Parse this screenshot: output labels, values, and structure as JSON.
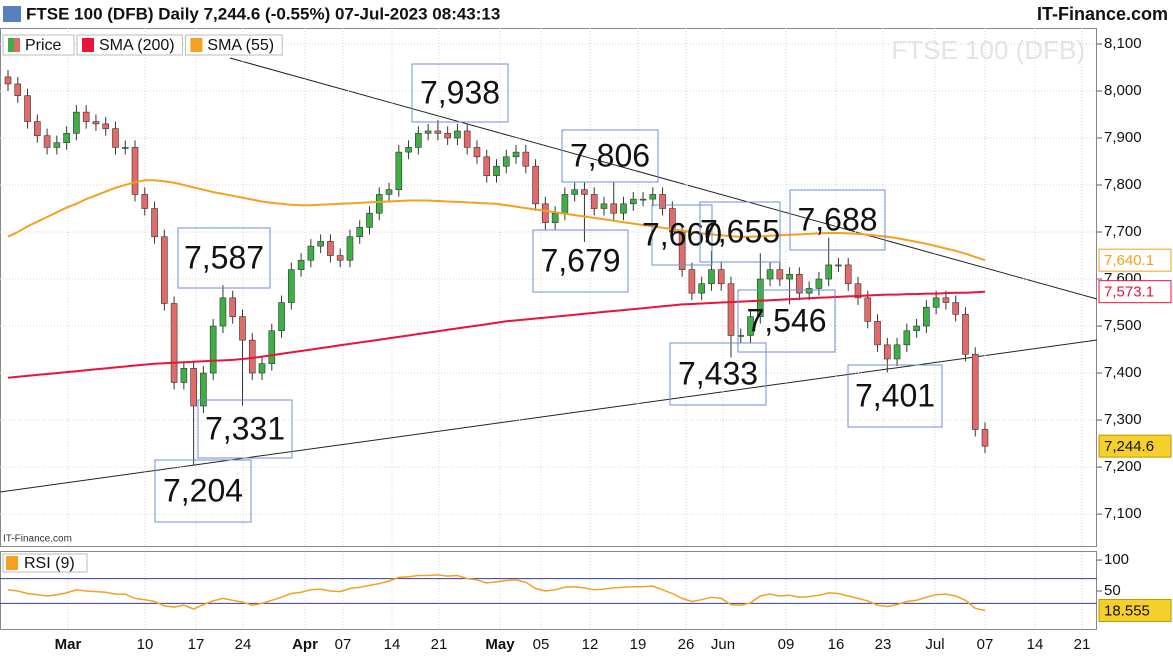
{
  "chart_data": [
    {
      "type": "candlestick",
      "title": "FTSE 100 (DFB) Daily 7,244.6 (-0.55%) 07-Jul-2023 08:43:13",
      "source": "IT-Finance.com",
      "watermark": "FTSE 100 (DFB)",
      "credit": "IT-Finance.com",
      "ylim": [
        7030,
        8134
      ],
      "yticks": [
        {
          "value": 7100,
          "label": "7,100"
        },
        {
          "value": 7200,
          "label": "7,200"
        },
        {
          "value": 7300,
          "label": "7,300"
        },
        {
          "value": 7400,
          "label": "7,400"
        },
        {
          "value": 7500,
          "label": "7,500"
        },
        {
          "value": 7600,
          "label": "7,600"
        },
        {
          "value": 7700,
          "label": "7,700"
        },
        {
          "value": 7800,
          "label": "7,800"
        },
        {
          "value": 7900,
          "label": "7,900"
        },
        {
          "value": 8000,
          "label": "8,000"
        },
        {
          "value": 8100,
          "label": "8,100"
        }
      ],
      "grid": true,
      "series": [
        {
          "name": "Price",
          "up_color": "#3cb043",
          "down_color": "#e46a6a",
          "color": "#3cb043",
          "last_label": "7,244.6",
          "open": [
            8030,
            8015,
            7990,
            7935,
            7905,
            7880,
            7890,
            7910,
            7955,
            7935,
            7930,
            7920,
            7880,
            7880,
            7780,
            7750,
            7690,
            7548,
            7380,
            7410,
            7330,
            7400,
            7500,
            7560,
            7520,
            7470,
            7400,
            7420,
            7490,
            7550,
            7620,
            7640,
            7670,
            7680,
            7650,
            7640,
            7690,
            7710,
            7740,
            7780,
            7790,
            7870,
            7880,
            7910,
            7915,
            7910,
            7900,
            7915,
            7880,
            7860,
            7820,
            7840,
            7860,
            7870,
            7840,
            7760,
            7720,
            7740,
            7780,
            7790,
            7780,
            7750,
            7760,
            7740,
            7760,
            7770,
            7770,
            7780,
            7750,
            7700,
            7620,
            7570,
            7590,
            7620,
            7590,
            7480,
            7480,
            7520,
            7600,
            7620,
            7600,
            7610,
            7570,
            7580,
            7600,
            7630,
            7630,
            7590,
            7560,
            7510,
            7460,
            7430,
            7460,
            7490,
            7500,
            7540,
            7560,
            7550,
            7525,
            7440,
            7280
          ],
          "high": [
            8045,
            8030,
            8005,
            7950,
            7920,
            7905,
            7925,
            7970,
            7970,
            7950,
            7945,
            7935,
            7895,
            7895,
            7795,
            7765,
            7705,
            7563,
            7425,
            7425,
            7415,
            7515,
            7587,
            7575,
            7535,
            7485,
            7435,
            7505,
            7565,
            7635,
            7655,
            7685,
            7695,
            7695,
            7665,
            7705,
            7725,
            7755,
            7795,
            7805,
            7885,
            7895,
            7925,
            7930,
            7938,
            7925,
            7930,
            7930,
            7895,
            7875,
            7855,
            7875,
            7885,
            7885,
            7855,
            7775,
            7755,
            7795,
            7805,
            7805,
            7795,
            7775,
            7806,
            7775,
            7785,
            7785,
            7795,
            7795,
            7765,
            7715,
            7635,
            7605,
            7660,
            7635,
            7605,
            7495,
            7535,
            7655,
            7635,
            7635,
            7625,
            7625,
            7595,
            7615,
            7688,
            7645,
            7645,
            7605,
            7575,
            7525,
            7475,
            7475,
            7505,
            7515,
            7555,
            7575,
            7575,
            7565,
            7540,
            7455,
            7295
          ],
          "low": [
            8000,
            7975,
            7920,
            7890,
            7865,
            7865,
            7875,
            7895,
            7920,
            7915,
            7905,
            7865,
            7865,
            7765,
            7735,
            7675,
            7533,
            7365,
            7365,
            7204,
            7315,
            7385,
            7485,
            7505,
            7331,
            7385,
            7385,
            7405,
            7475,
            7535,
            7605,
            7625,
            7655,
            7635,
            7625,
            7625,
            7675,
            7695,
            7725,
            7765,
            7775,
            7855,
            7865,
            7895,
            7895,
            7885,
            7885,
            7865,
            7845,
            7805,
            7805,
            7825,
            7845,
            7825,
            7745,
            7705,
            7705,
            7725,
            7765,
            7679,
            7735,
            7735,
            7725,
            7725,
            7745,
            7755,
            7755,
            7735,
            7685,
            7605,
            7555,
            7555,
            7575,
            7575,
            7433,
            7465,
            7465,
            7505,
            7585,
            7585,
            7546,
            7555,
            7555,
            7565,
            7585,
            7615,
            7575,
            7545,
            7495,
            7445,
            7401,
            7415,
            7445,
            7475,
            7485,
            7525,
            7535,
            7510,
            7425,
            7265,
            7229.6
          ],
          "close": [
            8015,
            7990,
            7935,
            7905,
            7880,
            7890,
            7910,
            7955,
            7935,
            7930,
            7920,
            7880,
            7880,
            7780,
            7750,
            7690,
            7548,
            7380,
            7410,
            7330,
            7400,
            7500,
            7560,
            7520,
            7470,
            7400,
            7420,
            7490,
            7550,
            7620,
            7640,
            7670,
            7680,
            7650,
            7640,
            7690,
            7710,
            7740,
            7780,
            7790,
            7870,
            7880,
            7910,
            7915,
            7910,
            7900,
            7915,
            7880,
            7860,
            7820,
            7840,
            7860,
            7870,
            7840,
            7760,
            7720,
            7740,
            7780,
            7790,
            7780,
            7750,
            7760,
            7740,
            7760,
            7770,
            7770,
            7780,
            7750,
            7700,
            7620,
            7570,
            7590,
            7620,
            7590,
            7480,
            7480,
            7520,
            7600,
            7620,
            7600,
            7610,
            7570,
            7580,
            7600,
            7630,
            7630,
            7590,
            7560,
            7510,
            7460,
            7430,
            7460,
            7490,
            7500,
            7540,
            7560,
            7550,
            7525,
            7440,
            7280,
            7244.6
          ]
        },
        {
          "name": "SMA (200)",
          "color": "#e8143c",
          "last_label": "7,573.1",
          "values": [
            7390,
            7392,
            7394,
            7396,
            7398,
            7400,
            7402,
            7404,
            7406,
            7408,
            7410,
            7412,
            7414,
            7416,
            7418,
            7420,
            7421,
            7422,
            7423,
            7424,
            7425,
            7426,
            7427,
            7428,
            7430,
            7432,
            7435,
            7438,
            7441,
            7444,
            7447,
            7450,
            7453,
            7456,
            7459,
            7462,
            7465,
            7468,
            7471,
            7474,
            7477,
            7480,
            7483,
            7486,
            7489,
            7492,
            7495,
            7498,
            7501,
            7504,
            7507,
            7510,
            7512,
            7514,
            7516,
            7518,
            7520,
            7522,
            7524,
            7526,
            7528,
            7530,
            7532,
            7534,
            7536,
            7538,
            7540,
            7542,
            7544,
            7546,
            7547,
            7548,
            7549,
            7550,
            7551,
            7552,
            7553,
            7554,
            7555,
            7556,
            7557,
            7558,
            7559,
            7560,
            7561,
            7562,
            7563,
            7564,
            7565,
            7566,
            7567,
            7567,
            7568,
            7568,
            7569,
            7569,
            7570,
            7571,
            7571,
            7572,
            7573.1
          ]
        },
        {
          "name": "SMA (55)",
          "color": "#f4a020",
          "last_label": "7,640.1",
          "values": [
            7690,
            7700,
            7712,
            7722,
            7732,
            7742,
            7752,
            7760,
            7770,
            7778,
            7786,
            7794,
            7800,
            7806,
            7810,
            7810,
            7808,
            7805,
            7800,
            7795,
            7790,
            7785,
            7781,
            7777,
            7773,
            7769,
            7765,
            7762,
            7760,
            7758,
            7757,
            7757,
            7758,
            7759,
            7760,
            7761,
            7762,
            7763,
            7764,
            7765,
            7766,
            7767,
            7767,
            7767,
            7766,
            7765,
            7764,
            7763,
            7762,
            7761,
            7760,
            7757,
            7754,
            7751,
            7748,
            7745,
            7742,
            7739,
            7736,
            7733,
            7730,
            7727,
            7724,
            7721,
            7718,
            7715,
            7712,
            7709,
            7706,
            7703,
            7700,
            7697,
            7695,
            7693,
            7691,
            7690,
            7690,
            7691,
            7692,
            7693,
            7694,
            7695,
            7696,
            7697,
            7698,
            7698,
            7697,
            7696,
            7694,
            7692,
            7690,
            7687,
            7683,
            7679,
            7675,
            7670,
            7665,
            7660,
            7654,
            7647,
            7640.1
          ]
        }
      ],
      "annotations": [
        {
          "value": 7938,
          "label": "7,938"
        },
        {
          "value": 7806,
          "label": "7,806"
        },
        {
          "value": 7679,
          "label": "7,679"
        },
        {
          "value": 7660,
          "label": "7,660"
        },
        {
          "value": 7655,
          "label": "7,655"
        },
        {
          "value": 7688,
          "label": "7,688"
        },
        {
          "value": 7587,
          "label": "7,587"
        },
        {
          "value": 7331,
          "label": "7,331"
        },
        {
          "value": 7204,
          "label": "7,204"
        },
        {
          "value": 7433,
          "label": "7,433"
        },
        {
          "value": 7546,
          "label": "7,546"
        },
        {
          "value": 7401,
          "label": "7,401"
        }
      ]
    },
    {
      "type": "line",
      "ylim": [
        -13,
        113
      ],
      "yticks": [
        50,
        100
      ],
      "hlines": [
        70,
        30
      ],
      "hline_color": "#3a3a9a",
      "x_labels": [
        "Mar",
        "10",
        "17",
        "24",
        "Apr",
        "07",
        "14",
        "21",
        "May",
        "05",
        "12",
        "19",
        "26",
        "Jun",
        "09",
        "16",
        "23",
        "Jul",
        "07",
        "14",
        "21"
      ],
      "series": [
        {
          "name": "RSI (9)",
          "color": "#f4a020",
          "last_label": "18.555",
          "values": [
            52,
            50,
            46,
            44,
            42,
            44,
            47,
            52,
            50,
            49,
            48,
            45,
            45,
            38,
            36,
            33,
            26,
            24,
            27,
            21,
            28,
            34,
            38,
            35,
            32,
            27,
            30,
            35,
            40,
            46,
            48,
            52,
            53,
            50,
            49,
            54,
            56,
            59,
            62,
            66,
            72,
            73,
            75,
            75,
            76,
            74,
            75,
            70,
            68,
            63,
            65,
            67,
            68,
            64,
            54,
            50,
            52,
            56,
            57,
            55,
            52,
            53,
            55,
            56,
            57,
            57,
            58,
            52,
            46,
            38,
            33,
            36,
            40,
            38,
            28,
            27,
            31,
            42,
            45,
            42,
            43,
            40,
            41,
            43,
            47,
            46,
            42,
            38,
            34,
            27,
            25,
            28,
            33,
            35,
            40,
            44,
            45,
            42,
            35,
            22,
            18.555
          ]
        }
      ]
    }
  ]
}
